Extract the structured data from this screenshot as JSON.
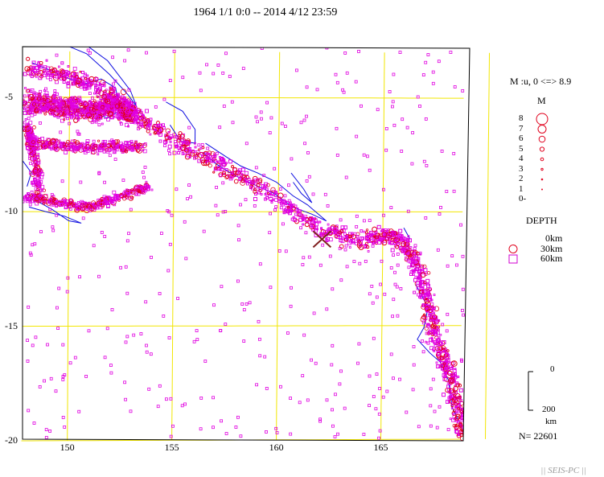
{
  "title": "1964 1/1 0:0 -- 2014 4/12 23:59",
  "axes": {
    "lon_ticks": [
      150,
      155,
      160,
      165
    ],
    "lat_ticks": [
      -5,
      -10,
      -15,
      -20
    ],
    "lon_range": [
      147.8,
      169.0
    ],
    "lat_range": [
      -20,
      -2.8
    ]
  },
  "legend": {
    "mag_range_label": "M :u, 0 <=> 8.9",
    "mag_title": "M",
    "mag_levels": [
      "8",
      "7",
      "6",
      "5",
      "4",
      "3",
      "2",
      "1",
      "0-"
    ],
    "depth_title": "DEPTH",
    "depth_levels": [
      {
        "label": "0km",
        "shape": "circle",
        "color": "#e0001c"
      },
      {
        "label": "30km",
        "shape": "circle",
        "color": "#e0001c"
      },
      {
        "label": "60km",
        "shape": "square",
        "color": "#d000d0"
      }
    ],
    "scale_top": "0",
    "scale_bottom": "200",
    "scale_unit": "km",
    "count": "N= 22601"
  },
  "footer": "|| SEIS-PC ||",
  "colors": {
    "grid": "#f2e600",
    "coast": "#1010e0",
    "shallow": "#e0001c",
    "deep": "#e000e0",
    "frame": "#000000"
  },
  "markers": {
    "mainshock": {
      "lon": 162.1,
      "lat": -11.2,
      "symbol": "x"
    }
  }
}
